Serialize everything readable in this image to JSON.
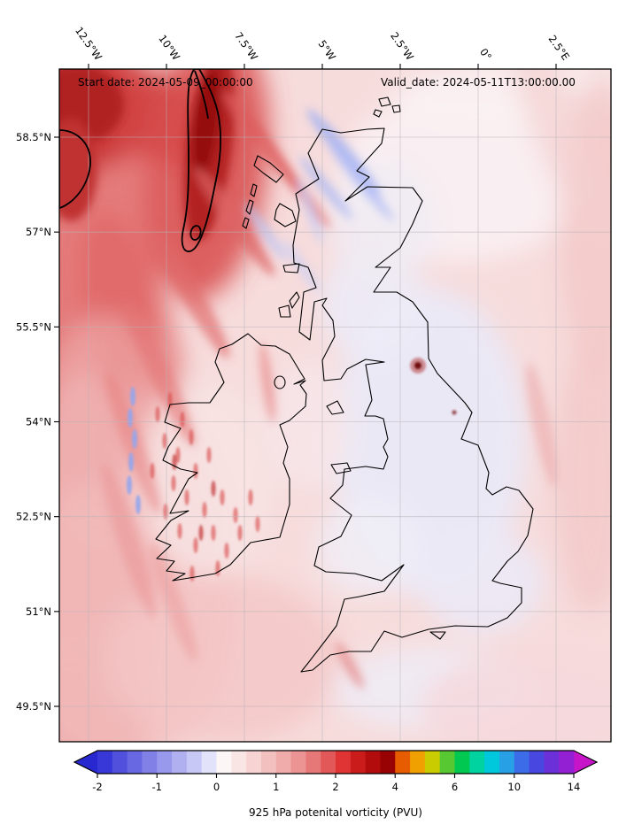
{
  "figure": {
    "start_date": "Start date: 2024-05-09_00:00:00",
    "valid_date": "Valid_date: 2024-05-11T13:00:00.00"
  },
  "axes": {
    "x_tick_labels": [
      "12.5°W",
      "10°W",
      "7.5°W",
      "5°W",
      "2.5°W",
      "0°",
      "2.5°E"
    ],
    "y_tick_labels": [
      "58.5°N",
      "57°N",
      "55.5°N",
      "54°N",
      "52.5°N",
      "51°N",
      "49.5°N"
    ]
  },
  "colorbar": {
    "label": "925 hPa potenital vorticity (PVU)",
    "tick_labels": [
      "-2",
      "-1",
      "0",
      "1",
      "2",
      "4",
      "6",
      "10",
      "14"
    ],
    "under_arrow_color": "#2828d0",
    "over_arrow_color": "#c814c8",
    "segment_colors": [
      "#3838d8",
      "#5050dd",
      "#6868e2",
      "#8080e7",
      "#9898ec",
      "#b0b0f1",
      "#c8c8f6",
      "#e2e2fb",
      "#fdf6f6",
      "#fae5e5",
      "#f7d3d3",
      "#f3c0c0",
      "#f0abab",
      "#ec9494",
      "#e77878",
      "#e25858",
      "#e03434",
      "#cb1c1c",
      "#b20c0c",
      "#980202",
      "#e85c00",
      "#f0a000",
      "#c8cc00",
      "#58c832",
      "#00c850",
      "#00d2a0",
      "#00c8dc",
      "#28a0e6",
      "#3c6ce8",
      "#4848e0",
      "#6c30d8",
      "#9420d4"
    ]
  },
  "chart_data": {
    "type": "heatmap",
    "subtype": "filled-contour weather map",
    "title": "",
    "colorbar_label": "925 hPa potenital vorticity (PVU)",
    "colorbar_tick_values": [
      -2,
      -1,
      0,
      1,
      2,
      4,
      6,
      10,
      14
    ],
    "colorbar_extend": "both",
    "x_tick_labels_longitude": [
      "12.5°W",
      "10°W",
      "7.5°W",
      "5°W",
      "2.5°W",
      "0°",
      "2.5°E"
    ],
    "y_tick_labels_latitude": [
      "58.5°N",
      "57°N",
      "55.5°N",
      "54°N",
      "52.5°N",
      "51°N",
      "49.5°N"
    ],
    "start_date_text": "Start date: 2024-05-09_00:00:00",
    "valid_date_text": "Valid_date: 2024-05-11T13:00:00.00",
    "notable_features": [
      "Strong PV maximum band (dark red, >2 PVU, black contour) northwest of Scotland and at the upper-left corner",
      "Diagonal NW-SE red PV streaks across the northeast Atlantic toward Ireland",
      "Weak negative-PV (light blue) lee-wave streaks northeast of Scotland and along the Irish west coast",
      "Near-zero PV (white/lavender) over England, the North Sea and the English Channel",
      "Speckled moderate PV (red stipple) over central and western Ireland",
      "Isolated dark PV spot near 54.9N 2W over northern England"
    ]
  }
}
